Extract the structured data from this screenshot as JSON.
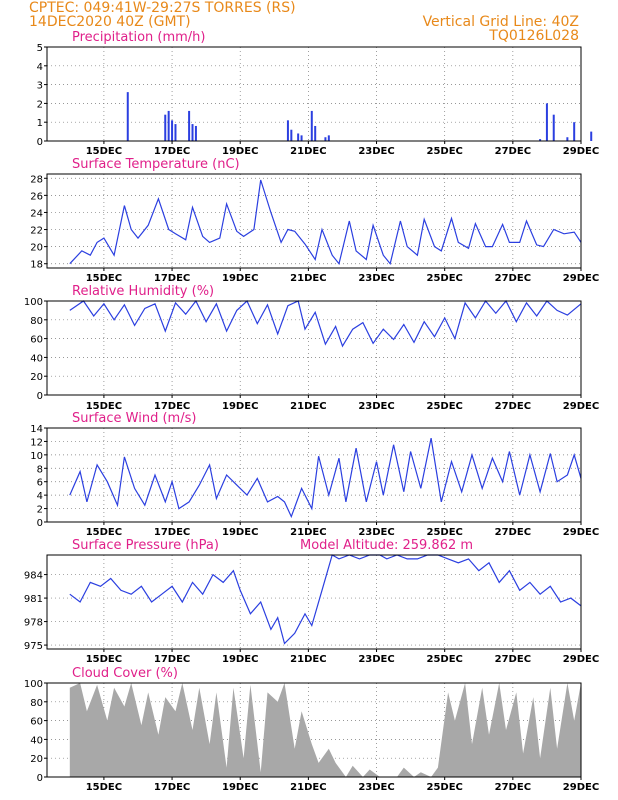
{
  "header": {
    "left_line1": "CPTEC:   049:41W-29:27S  TORRES (RS)",
    "left_line2": "14DEC2020 40Z (GMT)",
    "right_line1": "Vertical Grid Line: 40Z",
    "right_line2": "TQ0126L028"
  },
  "colors": {
    "header": "#e8891a",
    "title": "#e0208a",
    "series": "#2b3fe0",
    "cloud": "#a8a8a8"
  },
  "date_labels": [
    "15DEC",
    "17DEC",
    "19DEC",
    "21DEC",
    "23DEC",
    "25DEC",
    "27DEC",
    "29DEC"
  ],
  "chart_data": [
    {
      "id": "precip",
      "type": "bar",
      "title": "Precipitation (mm/h)",
      "yticks": [
        "0",
        "1",
        "2",
        "3",
        "4",
        "5"
      ],
      "ylim": [
        0,
        5
      ],
      "x": [
        1.7,
        2.8,
        2.9,
        3.0,
        3.1,
        3.5,
        3.6,
        3.7,
        6.4,
        6.5,
        6.7,
        6.8,
        7.1,
        7.2,
        7.5,
        7.6,
        13.8,
        14.0,
        14.2,
        14.6,
        14.8,
        15.3
      ],
      "values": [
        2.6,
        1.4,
        1.6,
        1.1,
        0.9,
        1.6,
        0.9,
        0.8,
        1.1,
        0.6,
        0.4,
        0.3,
        1.6,
        0.8,
        0.2,
        0.3,
        0.1,
        2.0,
        1.4,
        0.2,
        1.0,
        0.5
      ]
    },
    {
      "id": "temp",
      "type": "line",
      "title": "Surface Temperature (nC)",
      "yticks": [
        "18",
        "20",
        "22",
        "24",
        "26",
        "28"
      ],
      "ylim": [
        17.5,
        28.5
      ],
      "x": [
        0,
        0.35,
        0.6,
        0.8,
        1.0,
        1.3,
        1.6,
        1.8,
        2.0,
        2.3,
        2.6,
        2.9,
        3.1,
        3.4,
        3.6,
        3.9,
        4.1,
        4.4,
        4.6,
        4.9,
        5.1,
        5.4,
        5.6,
        5.9,
        6.2,
        6.4,
        6.6,
        6.9,
        7.2,
        7.4,
        7.7,
        7.9,
        8.2,
        8.4,
        8.7,
        8.9,
        9.2,
        9.4,
        9.7,
        9.9,
        10.2,
        10.4,
        10.7,
        10.9,
        11.2,
        11.4,
        11.7,
        11.9,
        12.2,
        12.4,
        12.7,
        12.9,
        13.2,
        13.4,
        13.7,
        13.9,
        14.2,
        14.5,
        14.8,
        15.0
      ],
      "values": [
        18,
        19.5,
        19,
        20.5,
        21,
        19,
        24.8,
        22,
        21,
        22.5,
        25.6,
        22,
        21.5,
        20.8,
        24.6,
        21.2,
        20.5,
        21,
        25,
        21.8,
        21.2,
        22,
        27.8,
        24,
        20.5,
        22,
        21.8,
        20.3,
        18.5,
        22,
        19,
        18,
        23,
        19.5,
        18.5,
        22.5,
        19,
        18,
        23,
        20,
        19,
        23.2,
        20,
        19.5,
        23.3,
        20.5,
        19.8,
        22.7,
        20,
        20,
        22.6,
        20.5,
        20.5,
        23,
        20.2,
        20,
        22,
        21.5,
        21.7,
        20.5
      ]
    },
    {
      "id": "rh",
      "type": "line",
      "title": "Relative Humidity (%)",
      "yticks": [
        "0",
        "20",
        "40",
        "60",
        "80",
        "100"
      ],
      "ylim": [
        0,
        100
      ],
      "x": [
        0,
        0.4,
        0.7,
        1.0,
        1.3,
        1.6,
        1.9,
        2.2,
        2.5,
        2.8,
        3.1,
        3.4,
        3.7,
        4.0,
        4.3,
        4.6,
        4.9,
        5.2,
        5.5,
        5.8,
        6.1,
        6.4,
        6.7,
        6.9,
        7.2,
        7.5,
        7.8,
        8.0,
        8.3,
        8.6,
        8.9,
        9.2,
        9.5,
        9.8,
        10.1,
        10.4,
        10.7,
        11.0,
        11.3,
        11.6,
        11.9,
        12.2,
        12.5,
        12.8,
        13.1,
        13.4,
        13.7,
        14.0,
        14.3,
        14.6,
        15.0
      ],
      "values": [
        90,
        100,
        84,
        97,
        80,
        96,
        74,
        92,
        97,
        68,
        98,
        86,
        100,
        78,
        97,
        68,
        90,
        100,
        76,
        96,
        65,
        95,
        100,
        70,
        88,
        54,
        73,
        52,
        70,
        77,
        55,
        70,
        59,
        75,
        56,
        78,
        62,
        82,
        60,
        98,
        82,
        100,
        87,
        100,
        78,
        98,
        84,
        100,
        90,
        85,
        97
      ]
    },
    {
      "id": "wind",
      "type": "line",
      "title": "Surface Wind (m/s)",
      "yticks": [
        "0",
        "2",
        "4",
        "6",
        "8",
        "10",
        "12",
        "14"
      ],
      "ylim": [
        0,
        14
      ],
      "x": [
        0,
        0.3,
        0.5,
        0.8,
        1.1,
        1.4,
        1.6,
        1.9,
        2.2,
        2.5,
        2.8,
        3.0,
        3.2,
        3.5,
        3.8,
        4.1,
        4.3,
        4.6,
        4.9,
        5.2,
        5.5,
        5.8,
        6.1,
        6.3,
        6.5,
        6.8,
        7.1,
        7.3,
        7.6,
        7.9,
        8.1,
        8.4,
        8.7,
        9.0,
        9.2,
        9.5,
        9.8,
        10.0,
        10.3,
        10.6,
        10.9,
        11.2,
        11.5,
        11.8,
        12.1,
        12.4,
        12.7,
        12.9,
        13.2,
        13.5,
        13.8,
        14.1,
        14.3,
        14.6,
        14.8,
        15.0
      ],
      "values": [
        4,
        7.5,
        3,
        8.5,
        6,
        2.5,
        9.7,
        5,
        2.5,
        7,
        3,
        6,
        2,
        3,
        5.5,
        8.5,
        3.5,
        7,
        5.5,
        4,
        6.5,
        3,
        3.8,
        3,
        0.8,
        5,
        2,
        9.8,
        4,
        9.5,
        3,
        11,
        3,
        9,
        4,
        11.5,
        4.5,
        10.5,
        5,
        12.5,
        3,
        9,
        4.5,
        10,
        5,
        9.5,
        6,
        10.5,
        4,
        10,
        4.5,
        10.2,
        6,
        7,
        10,
        6.5
      ]
    },
    {
      "id": "pres",
      "type": "line",
      "title": "Surface Pressure (hPa)",
      "annotation": "Model Altitude: 259.862 m",
      "yticks": [
        "975",
        "978",
        "981",
        "984"
      ],
      "ylim": [
        974.5,
        986.5
      ],
      "x": [
        0,
        0.3,
        0.6,
        0.9,
        1.2,
        1.5,
        1.8,
        2.1,
        2.4,
        2.7,
        3.0,
        3.3,
        3.6,
        3.9,
        4.2,
        4.5,
        4.8,
        5.0,
        5.3,
        5.6,
        5.9,
        6.1,
        6.3,
        6.6,
        6.9,
        7.1,
        7.4,
        7.7,
        7.9,
        8.2,
        8.5,
        8.8,
        9.1,
        9.3,
        9.6,
        9.9,
        10.2,
        10.5,
        10.8,
        11.1,
        11.4,
        11.7,
        12.0,
        12.3,
        12.6,
        12.9,
        13.2,
        13.5,
        13.8,
        14.1,
        14.4,
        14.7,
        15.0
      ],
      "values": [
        981.5,
        980.5,
        983,
        982.5,
        983.5,
        982,
        981.5,
        982.5,
        980.5,
        981.5,
        982.5,
        980.5,
        983,
        981.5,
        984,
        983,
        984.5,
        982,
        979,
        980.5,
        977,
        978.5,
        975.2,
        976.5,
        979,
        977.5,
        982,
        986.5,
        986,
        986.5,
        986,
        987,
        986.5,
        986,
        986.5,
        986,
        986,
        986.5,
        986.5,
        986,
        985.5,
        986,
        984.5,
        985.5,
        983,
        984.5,
        982,
        983,
        981.5,
        982.5,
        980.5,
        981,
        980
      ]
    },
    {
      "id": "cloud",
      "type": "area",
      "title": "Cloud Cover (%)",
      "yticks": [
        "0",
        "20",
        "40",
        "60",
        "80",
        "100"
      ],
      "ylim": [
        0,
        100
      ],
      "x": [
        0,
        0.3,
        0.5,
        0.8,
        1.1,
        1.3,
        1.6,
        1.8,
        2.1,
        2.3,
        2.6,
        2.8,
        3.1,
        3.3,
        3.6,
        3.8,
        4.1,
        4.3,
        4.6,
        4.8,
        5.1,
        5.3,
        5.6,
        5.8,
        6.1,
        6.3,
        6.6,
        6.8,
        7.1,
        7.3,
        7.6,
        7.8,
        8.1,
        8.3,
        8.6,
        8.8,
        9.1,
        9.3,
        9.6,
        9.8,
        10.1,
        10.3,
        10.6,
        10.8,
        11.1,
        11.3,
        11.6,
        11.8,
        12.1,
        12.3,
        12.6,
        12.8,
        13.1,
        13.3,
        13.6,
        13.8,
        14.1,
        14.3,
        14.6,
        14.8,
        15.0
      ],
      "values": [
        95,
        100,
        70,
        98,
        60,
        95,
        75,
        100,
        55,
        90,
        45,
        85,
        70,
        100,
        50,
        95,
        35,
        90,
        10,
        95,
        20,
        98,
        5,
        90,
        80,
        100,
        30,
        70,
        35,
        15,
        30,
        15,
        0,
        12,
        0,
        8,
        0,
        0,
        0,
        10,
        0,
        5,
        0,
        10,
        90,
        60,
        100,
        35,
        95,
        45,
        100,
        50,
        90,
        25,
        85,
        20,
        95,
        30,
        100,
        60,
        100
      ]
    }
  ]
}
